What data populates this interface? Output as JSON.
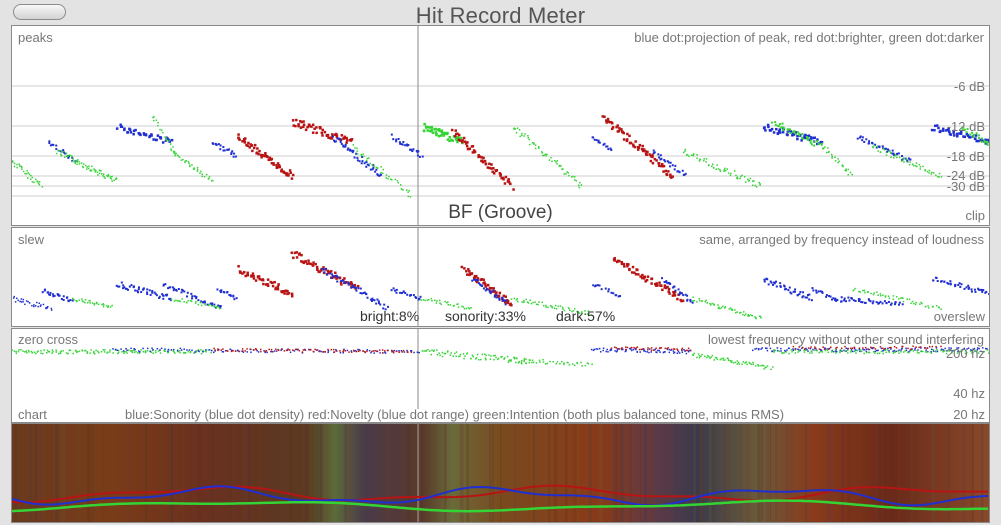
{
  "window": {
    "title": "Hit Record Meter"
  },
  "peaks": {
    "label": "peaks",
    "legend": "blue dot:projection of peak, red dot:brighter, green dot:darker",
    "ticks": [
      "-6 dB",
      "-12 dB",
      "-18 dB",
      "-24 dB",
      "-30 dB",
      "clip"
    ],
    "big_label": "BF (Groove)"
  },
  "slew": {
    "label": "slew",
    "legend": "same, arranged by frequency instead of loudness",
    "stats": {
      "bright": "bright:8%",
      "sonority": "sonority:33%",
      "dark": "dark:57%"
    },
    "overslew": "overslew"
  },
  "zero_cross": {
    "label": "zero cross",
    "legend": "lowest frequency without other sound interfering",
    "ticks": [
      "200 hz",
      "40 hz",
      "20 hz"
    ]
  },
  "chart": {
    "label": "chart",
    "legend": "blue:Sonority (blue dot density)  red:Novelty (blue dot range)  green:Intention (both plus balanced tone, minus RMS)"
  },
  "colors": {
    "blue": "#1f2fd0",
    "red": "#b81414",
    "green": "#34d434",
    "grid": "#cfcfcf",
    "cursor": "#888888"
  }
}
